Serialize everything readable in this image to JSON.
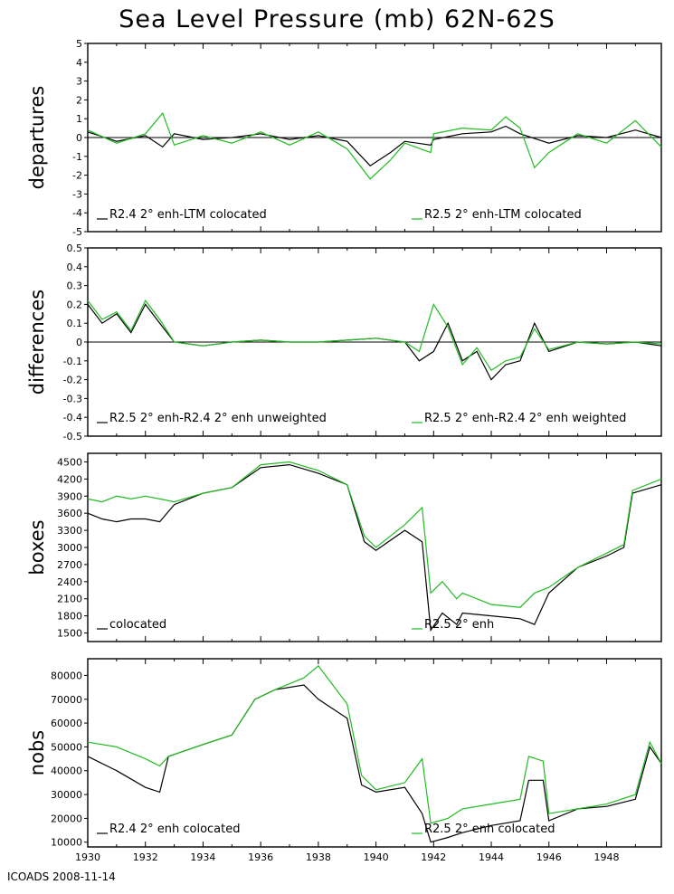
{
  "title": "Sea Level Pressure (mb) 62N-62S",
  "footer": "ICOADS 2008-11-14",
  "colors": {
    "series_a": "#000000",
    "series_b": "#22bb22",
    "axis": "#000000"
  },
  "chart_data": [
    {
      "type": "line",
      "ylabel": "departures",
      "ylim": [
        -5,
        5
      ],
      "yticks": [
        5,
        4,
        3,
        2,
        1,
        0,
        -1,
        -2,
        -3,
        -4,
        -5
      ],
      "zero_line": true,
      "x_range": [
        1930,
        1949.9
      ],
      "series": [
        {
          "name": "R2.4 2° enh-LTM colocated",
          "color": "#000000",
          "points": [
            [
              1930,
              0.3
            ],
            [
              1931,
              -0.2
            ],
            [
              1932,
              0.1
            ],
            [
              1932.6,
              -0.5
            ],
            [
              1933,
              0.2
            ],
            [
              1934,
              -0.1
            ],
            [
              1935,
              0.0
            ],
            [
              1936,
              0.2
            ],
            [
              1937,
              -0.1
            ],
            [
              1938,
              0.1
            ],
            [
              1939,
              -0.2
            ],
            [
              1939.8,
              -1.5
            ],
            [
              1940.5,
              -0.8
            ],
            [
              1941,
              -0.2
            ],
            [
              1941.9,
              -0.4
            ],
            [
              1942,
              -0.1
            ],
            [
              1943,
              0.2
            ],
            [
              1944,
              0.3
            ],
            [
              1944.5,
              0.6
            ],
            [
              1945,
              0.2
            ],
            [
              1946,
              -0.3
            ],
            [
              1947,
              0.1
            ],
            [
              1948,
              0.0
            ],
            [
              1949,
              0.4
            ],
            [
              1949.9,
              0.0
            ]
          ]
        },
        {
          "name": "R2.5 2° enh-LTM colocated",
          "color": "#22bb22",
          "points": [
            [
              1930,
              0.4
            ],
            [
              1931,
              -0.3
            ],
            [
              1932,
              0.2
            ],
            [
              1932.6,
              1.3
            ],
            [
              1933,
              -0.4
            ],
            [
              1934,
              0.1
            ],
            [
              1935,
              -0.3
            ],
            [
              1936,
              0.3
            ],
            [
              1937,
              -0.4
            ],
            [
              1938,
              0.3
            ],
            [
              1939,
              -0.6
            ],
            [
              1939.8,
              -2.2
            ],
            [
              1940.5,
              -1.2
            ],
            [
              1941,
              -0.3
            ],
            [
              1941.9,
              -0.8
            ],
            [
              1942,
              0.2
            ],
            [
              1943,
              0.5
            ],
            [
              1944,
              0.4
            ],
            [
              1944.5,
              1.1
            ],
            [
              1945,
              0.5
            ],
            [
              1945.5,
              -1.6
            ],
            [
              1946,
              -0.8
            ],
            [
              1947,
              0.2
            ],
            [
              1948,
              -0.3
            ],
            [
              1949,
              0.9
            ],
            [
              1949.9,
              -0.5
            ]
          ]
        }
      ]
    },
    {
      "type": "line",
      "ylabel": "differences",
      "ylim": [
        -0.5,
        0.5
      ],
      "yticks": [
        0.5,
        0.4,
        0.3,
        0.2,
        0.1,
        0,
        -0.1,
        -0.2,
        -0.3,
        -0.4,
        -0.5
      ],
      "zero_line": true,
      "x_range": [
        1930,
        1949.9
      ],
      "series": [
        {
          "name": "R2.5 2° enh-R2.4 2° enh unweighted",
          "color": "#000000",
          "points": [
            [
              1930,
              0.2
            ],
            [
              1930.5,
              0.1
            ],
            [
              1931,
              0.15
            ],
            [
              1931.5,
              0.05
            ],
            [
              1932,
              0.2
            ],
            [
              1932.5,
              0.1
            ],
            [
              1933,
              0.0
            ],
            [
              1934,
              -0.02
            ],
            [
              1935,
              0.0
            ],
            [
              1936,
              0.01
            ],
            [
              1937,
              0.0
            ],
            [
              1938,
              0.0
            ],
            [
              1939,
              0.01
            ],
            [
              1940,
              0.02
            ],
            [
              1941,
              0.0
            ],
            [
              1941.5,
              -0.1
            ],
            [
              1942,
              -0.05
            ],
            [
              1942.5,
              0.1
            ],
            [
              1943,
              -0.1
            ],
            [
              1943.5,
              -0.05
            ],
            [
              1944,
              -0.2
            ],
            [
              1944.5,
              -0.12
            ],
            [
              1945,
              -0.1
            ],
            [
              1945.5,
              0.1
            ],
            [
              1946,
              -0.05
            ],
            [
              1947,
              0.0
            ],
            [
              1948,
              -0.01
            ],
            [
              1949,
              0.0
            ],
            [
              1949.9,
              -0.02
            ]
          ]
        },
        {
          "name": "R2.5 2° enh-R2.4 2° enh weighted",
          "color": "#22bb22",
          "points": [
            [
              1930,
              0.22
            ],
            [
              1930.5,
              0.12
            ],
            [
              1931,
              0.16
            ],
            [
              1931.5,
              0.06
            ],
            [
              1932,
              0.22
            ],
            [
              1932.5,
              0.12
            ],
            [
              1933,
              0.0
            ],
            [
              1934,
              -0.02
            ],
            [
              1935,
              0.0
            ],
            [
              1936,
              0.01
            ],
            [
              1937,
              0.0
            ],
            [
              1938,
              0.0
            ],
            [
              1939,
              0.01
            ],
            [
              1940,
              0.02
            ],
            [
              1941,
              0.0
            ],
            [
              1941.5,
              -0.05
            ],
            [
              1942,
              0.2
            ],
            [
              1942.5,
              0.08
            ],
            [
              1943,
              -0.12
            ],
            [
              1943.5,
              -0.03
            ],
            [
              1944,
              -0.15
            ],
            [
              1944.5,
              -0.1
            ],
            [
              1945,
              -0.08
            ],
            [
              1945.5,
              0.07
            ],
            [
              1946,
              -0.04
            ],
            [
              1947,
              0.0
            ],
            [
              1948,
              -0.01
            ],
            [
              1949,
              0.0
            ],
            [
              1949.9,
              -0.01
            ]
          ]
        }
      ]
    },
    {
      "type": "line",
      "ylabel": "boxes",
      "ylim": [
        1350,
        4650
      ],
      "yticks": [
        4500,
        4200,
        3900,
        3600,
        3300,
        3000,
        2700,
        2400,
        2100,
        1800,
        1500
      ],
      "zero_line": false,
      "x_range": [
        1930,
        1949.9
      ],
      "series": [
        {
          "name": "colocated",
          "color": "#000000",
          "points": [
            [
              1930,
              3600
            ],
            [
              1930.5,
              3500
            ],
            [
              1931,
              3450
            ],
            [
              1931.5,
              3500
            ],
            [
              1932,
              3500
            ],
            [
              1932.5,
              3450
            ],
            [
              1933,
              3750
            ],
            [
              1934,
              3950
            ],
            [
              1935,
              4050
            ],
            [
              1936,
              4400
            ],
            [
              1937,
              4450
            ],
            [
              1938,
              4300
            ],
            [
              1939,
              4100
            ],
            [
              1939.6,
              3100
            ],
            [
              1940,
              2950
            ],
            [
              1941,
              3300
            ],
            [
              1941.6,
              3100
            ],
            [
              1941.9,
              1550
            ],
            [
              1942.3,
              1850
            ],
            [
              1942.8,
              1650
            ],
            [
              1943,
              1850
            ],
            [
              1944,
              1800
            ],
            [
              1945,
              1750
            ],
            [
              1945.5,
              1650
            ],
            [
              1946,
              2200
            ],
            [
              1947,
              2650
            ],
            [
              1948,
              2850
            ],
            [
              1948.6,
              3000
            ],
            [
              1948.9,
              3950
            ],
            [
              1949.9,
              4100
            ]
          ]
        },
        {
          "name": "R2.5 2° enh",
          "color": "#22bb22",
          "points": [
            [
              1930,
              3850
            ],
            [
              1930.5,
              3800
            ],
            [
              1931,
              3900
            ],
            [
              1931.5,
              3850
            ],
            [
              1932,
              3900
            ],
            [
              1932.5,
              3850
            ],
            [
              1933,
              3800
            ],
            [
              1934,
              3950
            ],
            [
              1935,
              4050
            ],
            [
              1936,
              4450
            ],
            [
              1937,
              4500
            ],
            [
              1938,
              4350
            ],
            [
              1939,
              4100
            ],
            [
              1939.6,
              3200
            ],
            [
              1940,
              3000
            ],
            [
              1941,
              3400
            ],
            [
              1941.6,
              3700
            ],
            [
              1941.9,
              2200
            ],
            [
              1942.3,
              2400
            ],
            [
              1942.8,
              2100
            ],
            [
              1943,
              2200
            ],
            [
              1944,
              2000
            ],
            [
              1945,
              1950
            ],
            [
              1945.5,
              2200
            ],
            [
              1946,
              2300
            ],
            [
              1947,
              2650
            ],
            [
              1948,
              2900
            ],
            [
              1948.6,
              3050
            ],
            [
              1948.9,
              4000
            ],
            [
              1949.9,
              4200
            ]
          ]
        }
      ]
    },
    {
      "type": "line",
      "ylabel": "nobs",
      "ylim": [
        8000,
        87000
      ],
      "yticks": [
        80000,
        70000,
        60000,
        50000,
        40000,
        30000,
        20000,
        10000
      ],
      "zero_line": false,
      "x_range": [
        1930,
        1949.9
      ],
      "xticks": [
        "1930",
        "1932",
        "1934",
        "1936",
        "1938",
        "1940",
        "1942",
        "1944",
        "1946",
        "1948"
      ],
      "series": [
        {
          "name": "R2.4 2° enh colocated",
          "color": "#000000",
          "points": [
            [
              1930,
              46000
            ],
            [
              1931,
              40000
            ],
            [
              1932,
              33000
            ],
            [
              1932.5,
              31000
            ],
            [
              1932.8,
              46000
            ],
            [
              1934,
              51000
            ],
            [
              1935,
              55000
            ],
            [
              1935.8,
              70000
            ],
            [
              1936.5,
              74000
            ],
            [
              1937.5,
              76000
            ],
            [
              1938,
              70000
            ],
            [
              1939,
              62000
            ],
            [
              1939.5,
              34000
            ],
            [
              1940,
              31000
            ],
            [
              1941,
              33000
            ],
            [
              1941.6,
              22000
            ],
            [
              1941.9,
              10000
            ],
            [
              1942.5,
              12000
            ],
            [
              1943,
              14000
            ],
            [
              1944,
              17000
            ],
            [
              1945,
              19000
            ],
            [
              1945.3,
              36000
            ],
            [
              1945.8,
              36000
            ],
            [
              1946,
              19000
            ],
            [
              1947,
              24000
            ],
            [
              1948,
              25000
            ],
            [
              1949,
              28000
            ],
            [
              1949.5,
              50000
            ],
            [
              1949.9,
              43000
            ]
          ]
        },
        {
          "name": "R2.5 2° enh colocated",
          "color": "#22bb22",
          "points": [
            [
              1930,
              52000
            ],
            [
              1931,
              50000
            ],
            [
              1932,
              45000
            ],
            [
              1932.5,
              42000
            ],
            [
              1932.8,
              46000
            ],
            [
              1934,
              51000
            ],
            [
              1935,
              55000
            ],
            [
              1935.8,
              70000
            ],
            [
              1936.5,
              74000
            ],
            [
              1937.5,
              79000
            ],
            [
              1938,
              84000
            ],
            [
              1939,
              68000
            ],
            [
              1939.5,
              38000
            ],
            [
              1940,
              32000
            ],
            [
              1941,
              35000
            ],
            [
              1941.6,
              45000
            ],
            [
              1941.9,
              18000
            ],
            [
              1942.5,
              20000
            ],
            [
              1943,
              24000
            ],
            [
              1944,
              26000
            ],
            [
              1945,
              28000
            ],
            [
              1945.3,
              46000
            ],
            [
              1945.8,
              44000
            ],
            [
              1946,
              22000
            ],
            [
              1947,
              24000
            ],
            [
              1948,
              26000
            ],
            [
              1949,
              30000
            ],
            [
              1949.5,
              52000
            ],
            [
              1949.9,
              43000
            ]
          ]
        }
      ]
    }
  ]
}
